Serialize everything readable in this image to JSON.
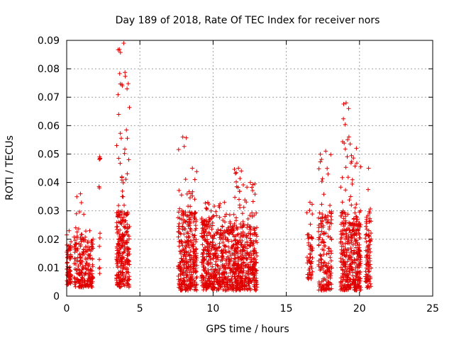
{
  "chart_data": {
    "type": "scatter",
    "title": "Day 189 of 2018, Rate Of TEC Index for receiver nors",
    "xlabel": "GPS time / hours",
    "ylabel": "ROTI / TECUs",
    "xlim": [
      0,
      25
    ],
    "ylim": [
      0,
      0.09
    ],
    "x_ticks": [
      "0",
      "5",
      "10",
      "15",
      "20",
      "25"
    ],
    "y_ticks": [
      "0",
      "0.01",
      "0.02",
      "0.03",
      "0.04",
      "0.05",
      "0.06",
      "0.07",
      "0.08",
      "0.09"
    ],
    "x_tick_values": [
      0,
      5,
      10,
      15,
      20,
      25
    ],
    "y_tick_values": [
      0,
      0.01,
      0.02,
      0.03,
      0.04,
      0.05,
      0.06,
      0.07,
      0.08,
      0.09
    ],
    "grid": true,
    "marker": "+",
    "color": "#e00000",
    "clusters": [
      {
        "x_range": [
          0.0,
          0.3
        ],
        "count": 70,
        "y_typical": [
          0.004,
          0.018
        ],
        "peak": 0.023
      },
      {
        "x_range": [
          0.5,
          1.3
        ],
        "count": 130,
        "y_typical": [
          0.003,
          0.022
        ],
        "peak": 0.036
      },
      {
        "x_range": [
          1.3,
          1.8
        ],
        "count": 90,
        "y_typical": [
          0.003,
          0.02
        ],
        "peak": 0.023
      },
      {
        "x_range": [
          2.2,
          2.3
        ],
        "count": 12,
        "y_typical": [
          0.007,
          0.018
        ],
        "peak": 0.049
      },
      {
        "x_range": [
          3.4,
          4.3
        ],
        "count": 280,
        "y_typical": [
          0.003,
          0.03
        ],
        "peak": 0.089
      },
      {
        "x_range": [
          7.6,
          8.2
        ],
        "count": 150,
        "y_typical": [
          0.002,
          0.03
        ],
        "peak": 0.056
      },
      {
        "x_range": [
          8.2,
          8.9
        ],
        "count": 180,
        "y_typical": [
          0.002,
          0.03
        ],
        "peak": 0.045
      },
      {
        "x_range": [
          9.2,
          10.0
        ],
        "count": 200,
        "y_typical": [
          0.002,
          0.028
        ],
        "peak": 0.033
      },
      {
        "x_range": [
          10.0,
          11.4
        ],
        "count": 280,
        "y_typical": [
          0.002,
          0.025
        ],
        "peak": 0.033
      },
      {
        "x_range": [
          11.4,
          12.0
        ],
        "count": 180,
        "y_typical": [
          0.002,
          0.025
        ],
        "peak": 0.045
      },
      {
        "x_range": [
          12.0,
          13.0
        ],
        "count": 230,
        "y_typical": [
          0.002,
          0.025
        ],
        "peak": 0.04
      },
      {
        "x_range": [
          16.4,
          16.8
        ],
        "count": 60,
        "y_typical": [
          0.006,
          0.022
        ],
        "peak": 0.033
      },
      {
        "x_range": [
          17.2,
          18.1
        ],
        "count": 170,
        "y_typical": [
          0.002,
          0.03
        ],
        "peak": 0.051
      },
      {
        "x_range": [
          18.7,
          19.4
        ],
        "count": 190,
        "y_typical": [
          0.002,
          0.03
        ],
        "peak": 0.068
      },
      {
        "x_range": [
          19.4,
          20.1
        ],
        "count": 200,
        "y_typical": [
          0.002,
          0.028
        ],
        "peak": 0.052
      },
      {
        "x_range": [
          20.4,
          20.8
        ],
        "count": 90,
        "y_typical": [
          0.003,
          0.03
        ],
        "peak": 0.045
      }
    ]
  }
}
